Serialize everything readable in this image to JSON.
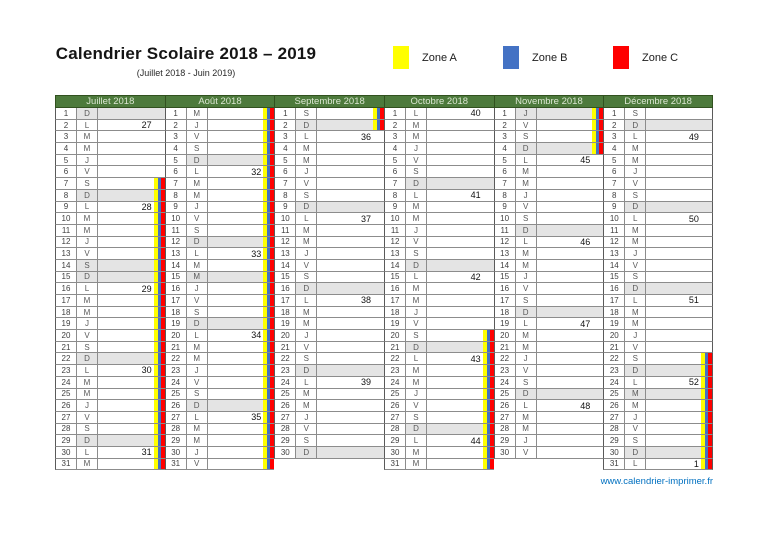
{
  "title": "Calendrier Scolaire 2018 – 2019",
  "subtitle": "(Juillet 2018 - Juin 2019)",
  "zones": [
    {
      "id": "a",
      "label": "Zone A",
      "color": "#ffff00"
    },
    {
      "id": "b",
      "label": "Zone B",
      "color": "#4472c4"
    },
    {
      "id": "c",
      "label": "Zone C",
      "color": "#ff0000"
    }
  ],
  "footer": {
    "link": "www.calendrier-imprimer.fr"
  },
  "colors": {
    "header_green": "#4d7a3c",
    "header_text": "#dbe7d2",
    "shaded_day": "#e4e4e4",
    "grid_border": "#8c8c8c",
    "link_blue": "#0070c0"
  },
  "day_fields": [
    "day",
    "letter",
    "week_number(0=none)",
    "shaded",
    "vacation_stripes"
  ],
  "months": [
    {
      "name": "Juillet 2018",
      "days": [
        [
          1,
          "D",
          0,
          1,
          0
        ],
        [
          2,
          "L",
          27,
          0,
          0
        ],
        [
          3,
          "M",
          0,
          0,
          0
        ],
        [
          4,
          "M",
          0,
          0,
          0
        ],
        [
          5,
          "J",
          0,
          0,
          0
        ],
        [
          6,
          "V",
          0,
          0,
          0
        ],
        [
          7,
          "S",
          0,
          0,
          1
        ],
        [
          8,
          "D",
          0,
          1,
          1
        ],
        [
          9,
          "L",
          28,
          0,
          1
        ],
        [
          10,
          "M",
          0,
          0,
          1
        ],
        [
          11,
          "M",
          0,
          0,
          1
        ],
        [
          12,
          "J",
          0,
          0,
          1
        ],
        [
          13,
          "V",
          0,
          0,
          1
        ],
        [
          14,
          "S",
          0,
          1,
          1
        ],
        [
          15,
          "D",
          0,
          1,
          1
        ],
        [
          16,
          "L",
          29,
          0,
          1
        ],
        [
          17,
          "M",
          0,
          0,
          1
        ],
        [
          18,
          "M",
          0,
          0,
          1
        ],
        [
          19,
          "J",
          0,
          0,
          1
        ],
        [
          20,
          "V",
          0,
          0,
          1
        ],
        [
          21,
          "S",
          0,
          0,
          1
        ],
        [
          22,
          "D",
          0,
          1,
          1
        ],
        [
          23,
          "L",
          30,
          0,
          1
        ],
        [
          24,
          "M",
          0,
          0,
          1
        ],
        [
          25,
          "M",
          0,
          0,
          1
        ],
        [
          26,
          "J",
          0,
          0,
          1
        ],
        [
          27,
          "V",
          0,
          0,
          1
        ],
        [
          28,
          "S",
          0,
          0,
          1
        ],
        [
          29,
          "D",
          0,
          1,
          1
        ],
        [
          30,
          "L",
          31,
          0,
          1
        ],
        [
          31,
          "M",
          0,
          0,
          1
        ]
      ]
    },
    {
      "name": "Août 2018",
      "days": [
        [
          1,
          "M",
          0,
          0,
          1
        ],
        [
          2,
          "J",
          0,
          0,
          1
        ],
        [
          3,
          "V",
          0,
          0,
          1
        ],
        [
          4,
          "S",
          0,
          0,
          1
        ],
        [
          5,
          "D",
          0,
          1,
          1
        ],
        [
          6,
          "L",
          32,
          0,
          1
        ],
        [
          7,
          "M",
          0,
          0,
          1
        ],
        [
          8,
          "M",
          0,
          0,
          1
        ],
        [
          9,
          "J",
          0,
          0,
          1
        ],
        [
          10,
          "V",
          0,
          0,
          1
        ],
        [
          11,
          "S",
          0,
          0,
          1
        ],
        [
          12,
          "D",
          0,
          1,
          1
        ],
        [
          13,
          "L",
          33,
          0,
          1
        ],
        [
          14,
          "M",
          0,
          0,
          1
        ],
        [
          15,
          "M",
          0,
          1,
          1
        ],
        [
          16,
          "J",
          0,
          0,
          1
        ],
        [
          17,
          "V",
          0,
          0,
          1
        ],
        [
          18,
          "S",
          0,
          0,
          1
        ],
        [
          19,
          "D",
          0,
          1,
          1
        ],
        [
          20,
          "L",
          34,
          0,
          1
        ],
        [
          21,
          "M",
          0,
          0,
          1
        ],
        [
          22,
          "M",
          0,
          0,
          1
        ],
        [
          23,
          "J",
          0,
          0,
          1
        ],
        [
          24,
          "V",
          0,
          0,
          1
        ],
        [
          25,
          "S",
          0,
          0,
          1
        ],
        [
          26,
          "D",
          0,
          1,
          1
        ],
        [
          27,
          "L",
          35,
          0,
          1
        ],
        [
          28,
          "M",
          0,
          0,
          1
        ],
        [
          29,
          "M",
          0,
          0,
          1
        ],
        [
          30,
          "J",
          0,
          0,
          1
        ],
        [
          31,
          "V",
          0,
          0,
          1
        ]
      ]
    },
    {
      "name": "Septembre 2018",
      "days": [
        [
          1,
          "S",
          0,
          0,
          1
        ],
        [
          2,
          "D",
          0,
          1,
          1
        ],
        [
          3,
          "L",
          36,
          0,
          0
        ],
        [
          4,
          "M",
          0,
          0,
          0
        ],
        [
          5,
          "M",
          0,
          0,
          0
        ],
        [
          6,
          "J",
          0,
          0,
          0
        ],
        [
          7,
          "V",
          0,
          0,
          0
        ],
        [
          8,
          "S",
          0,
          0,
          0
        ],
        [
          9,
          "D",
          0,
          1,
          0
        ],
        [
          10,
          "L",
          37,
          0,
          0
        ],
        [
          11,
          "M",
          0,
          0,
          0
        ],
        [
          12,
          "M",
          0,
          0,
          0
        ],
        [
          13,
          "J",
          0,
          0,
          0
        ],
        [
          14,
          "V",
          0,
          0,
          0
        ],
        [
          15,
          "S",
          0,
          0,
          0
        ],
        [
          16,
          "D",
          0,
          1,
          0
        ],
        [
          17,
          "L",
          38,
          0,
          0
        ],
        [
          18,
          "M",
          0,
          0,
          0
        ],
        [
          19,
          "M",
          0,
          0,
          0
        ],
        [
          20,
          "J",
          0,
          0,
          0
        ],
        [
          21,
          "V",
          0,
          0,
          0
        ],
        [
          22,
          "S",
          0,
          0,
          0
        ],
        [
          23,
          "D",
          0,
          1,
          0
        ],
        [
          24,
          "L",
          39,
          0,
          0
        ],
        [
          25,
          "M",
          0,
          0,
          0
        ],
        [
          26,
          "M",
          0,
          0,
          0
        ],
        [
          27,
          "J",
          0,
          0,
          0
        ],
        [
          28,
          "V",
          0,
          0,
          0
        ],
        [
          29,
          "S",
          0,
          0,
          0
        ],
        [
          30,
          "D",
          0,
          1,
          0
        ]
      ]
    },
    {
      "name": "Octobre 2018",
      "days": [
        [
          1,
          "L",
          40,
          0,
          0
        ],
        [
          2,
          "M",
          0,
          0,
          0
        ],
        [
          3,
          "M",
          0,
          0,
          0
        ],
        [
          4,
          "J",
          0,
          0,
          0
        ],
        [
          5,
          "V",
          0,
          0,
          0
        ],
        [
          6,
          "S",
          0,
          0,
          0
        ],
        [
          7,
          "D",
          0,
          1,
          0
        ],
        [
          8,
          "L",
          41,
          0,
          0
        ],
        [
          9,
          "M",
          0,
          0,
          0
        ],
        [
          10,
          "M",
          0,
          0,
          0
        ],
        [
          11,
          "J",
          0,
          0,
          0
        ],
        [
          12,
          "V",
          0,
          0,
          0
        ],
        [
          13,
          "S",
          0,
          0,
          0
        ],
        [
          14,
          "D",
          0,
          1,
          0
        ],
        [
          15,
          "L",
          42,
          0,
          0
        ],
        [
          16,
          "M",
          0,
          0,
          0
        ],
        [
          17,
          "M",
          0,
          0,
          0
        ],
        [
          18,
          "J",
          0,
          0,
          0
        ],
        [
          19,
          "V",
          0,
          0,
          0
        ],
        [
          20,
          "S",
          0,
          0,
          1
        ],
        [
          21,
          "D",
          0,
          1,
          1
        ],
        [
          22,
          "L",
          43,
          0,
          1
        ],
        [
          23,
          "M",
          0,
          0,
          1
        ],
        [
          24,
          "M",
          0,
          0,
          1
        ],
        [
          25,
          "J",
          0,
          0,
          1
        ],
        [
          26,
          "V",
          0,
          0,
          1
        ],
        [
          27,
          "S",
          0,
          0,
          1
        ],
        [
          28,
          "D",
          0,
          1,
          1
        ],
        [
          29,
          "L",
          44,
          0,
          1
        ],
        [
          30,
          "M",
          0,
          0,
          1
        ],
        [
          31,
          "M",
          0,
          0,
          1
        ]
      ]
    },
    {
      "name": "Novembre 2018",
      "days": [
        [
          1,
          "J",
          0,
          1,
          1
        ],
        [
          2,
          "V",
          0,
          0,
          1
        ],
        [
          3,
          "S",
          0,
          0,
          1
        ],
        [
          4,
          "D",
          0,
          1,
          1
        ],
        [
          5,
          "L",
          45,
          0,
          0
        ],
        [
          6,
          "M",
          0,
          0,
          0
        ],
        [
          7,
          "M",
          0,
          0,
          0
        ],
        [
          8,
          "J",
          0,
          0,
          0
        ],
        [
          9,
          "V",
          0,
          0,
          0
        ],
        [
          10,
          "S",
          0,
          0,
          0
        ],
        [
          11,
          "D",
          0,
          1,
          0
        ],
        [
          12,
          "L",
          46,
          0,
          0
        ],
        [
          13,
          "M",
          0,
          0,
          0
        ],
        [
          14,
          "M",
          0,
          0,
          0
        ],
        [
          15,
          "J",
          0,
          0,
          0
        ],
        [
          16,
          "V",
          0,
          0,
          0
        ],
        [
          17,
          "S",
          0,
          0,
          0
        ],
        [
          18,
          "D",
          0,
          1,
          0
        ],
        [
          19,
          "L",
          47,
          0,
          0
        ],
        [
          20,
          "M",
          0,
          0,
          0
        ],
        [
          21,
          "M",
          0,
          0,
          0
        ],
        [
          22,
          "J",
          0,
          0,
          0
        ],
        [
          23,
          "V",
          0,
          0,
          0
        ],
        [
          24,
          "S",
          0,
          0,
          0
        ],
        [
          25,
          "D",
          0,
          1,
          0
        ],
        [
          26,
          "L",
          48,
          0,
          0
        ],
        [
          27,
          "M",
          0,
          0,
          0
        ],
        [
          28,
          "M",
          0,
          0,
          0
        ],
        [
          29,
          "J",
          0,
          0,
          0
        ],
        [
          30,
          "V",
          0,
          0,
          0
        ]
      ]
    },
    {
      "name": "Décembre 2018",
      "days": [
        [
          1,
          "S",
          0,
          0,
          0
        ],
        [
          2,
          "D",
          0,
          1,
          0
        ],
        [
          3,
          "L",
          49,
          0,
          0
        ],
        [
          4,
          "M",
          0,
          0,
          0
        ],
        [
          5,
          "M",
          0,
          0,
          0
        ],
        [
          6,
          "J",
          0,
          0,
          0
        ],
        [
          7,
          "V",
          0,
          0,
          0
        ],
        [
          8,
          "S",
          0,
          0,
          0
        ],
        [
          9,
          "D",
          0,
          1,
          0
        ],
        [
          10,
          "L",
          50,
          0,
          0
        ],
        [
          11,
          "M",
          0,
          0,
          0
        ],
        [
          12,
          "M",
          0,
          0,
          0
        ],
        [
          13,
          "J",
          0,
          0,
          0
        ],
        [
          14,
          "V",
          0,
          0,
          0
        ],
        [
          15,
          "S",
          0,
          0,
          0
        ],
        [
          16,
          "D",
          0,
          1,
          0
        ],
        [
          17,
          "L",
          51,
          0,
          0
        ],
        [
          18,
          "M",
          0,
          0,
          0
        ],
        [
          19,
          "M",
          0,
          0,
          0
        ],
        [
          20,
          "J",
          0,
          0,
          0
        ],
        [
          21,
          "V",
          0,
          0,
          0
        ],
        [
          22,
          "S",
          0,
          0,
          1
        ],
        [
          23,
          "D",
          0,
          1,
          1
        ],
        [
          24,
          "L",
          52,
          0,
          1
        ],
        [
          25,
          "M",
          0,
          1,
          1
        ],
        [
          26,
          "M",
          0,
          0,
          1
        ],
        [
          27,
          "J",
          0,
          0,
          1
        ],
        [
          28,
          "V",
          0,
          0,
          1
        ],
        [
          29,
          "S",
          0,
          0,
          1
        ],
        [
          30,
          "D",
          0,
          1,
          1
        ],
        [
          31,
          "L",
          1,
          0,
          1
        ]
      ]
    }
  ]
}
